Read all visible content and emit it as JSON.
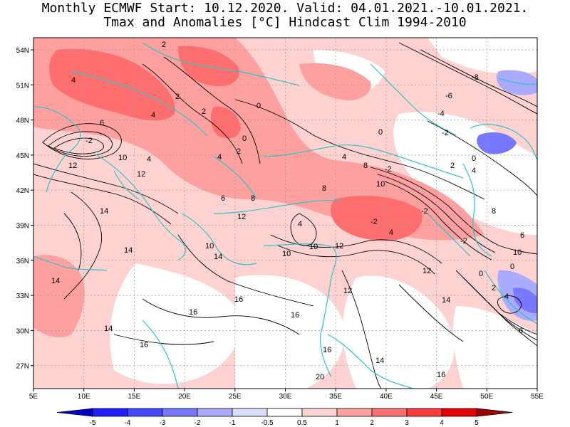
{
  "title": {
    "line1": "Monthly ECMWF Start: 10.12.2020. Valid: 04.01.2021.-10.01.2021.",
    "line2": "Tmax and Anomalies [°C] Hindcast Clim 1994-2010"
  },
  "axes": {
    "lon_labels": [
      "5E",
      "10E",
      "15E",
      "20E",
      "25E",
      "30E",
      "35E",
      "40E",
      "45E",
      "50E",
      "55E"
    ],
    "lat_labels": [
      "54N",
      "51N",
      "48N",
      "45N",
      "42N",
      "39N",
      "36N",
      "33N",
      "30N",
      "27N"
    ]
  },
  "colorbar": {
    "ticks": [
      "-5",
      "-4",
      "-3",
      "-2",
      "-1",
      "-0.5",
      "0.5",
      "1",
      "2",
      "3",
      "4",
      "5"
    ],
    "colors": [
      "#0000c8",
      "#1e1eff",
      "#4646ff",
      "#7878ff",
      "#aaaaff",
      "#dcdcff",
      "#ffffff",
      "#ffd2d2",
      "#ffa0a0",
      "#ff6e6e",
      "#ff3c3c",
      "#e60000",
      "#a00000"
    ]
  },
  "contour_labels": [
    "-8",
    "-6",
    "-4",
    "-2",
    "0",
    "2",
    "4",
    "6",
    "8",
    "10",
    "12",
    "14",
    "16",
    "20"
  ],
  "colors": {
    "coast": "#2ec4c4",
    "contour": "#000000",
    "grid": "#999999"
  }
}
